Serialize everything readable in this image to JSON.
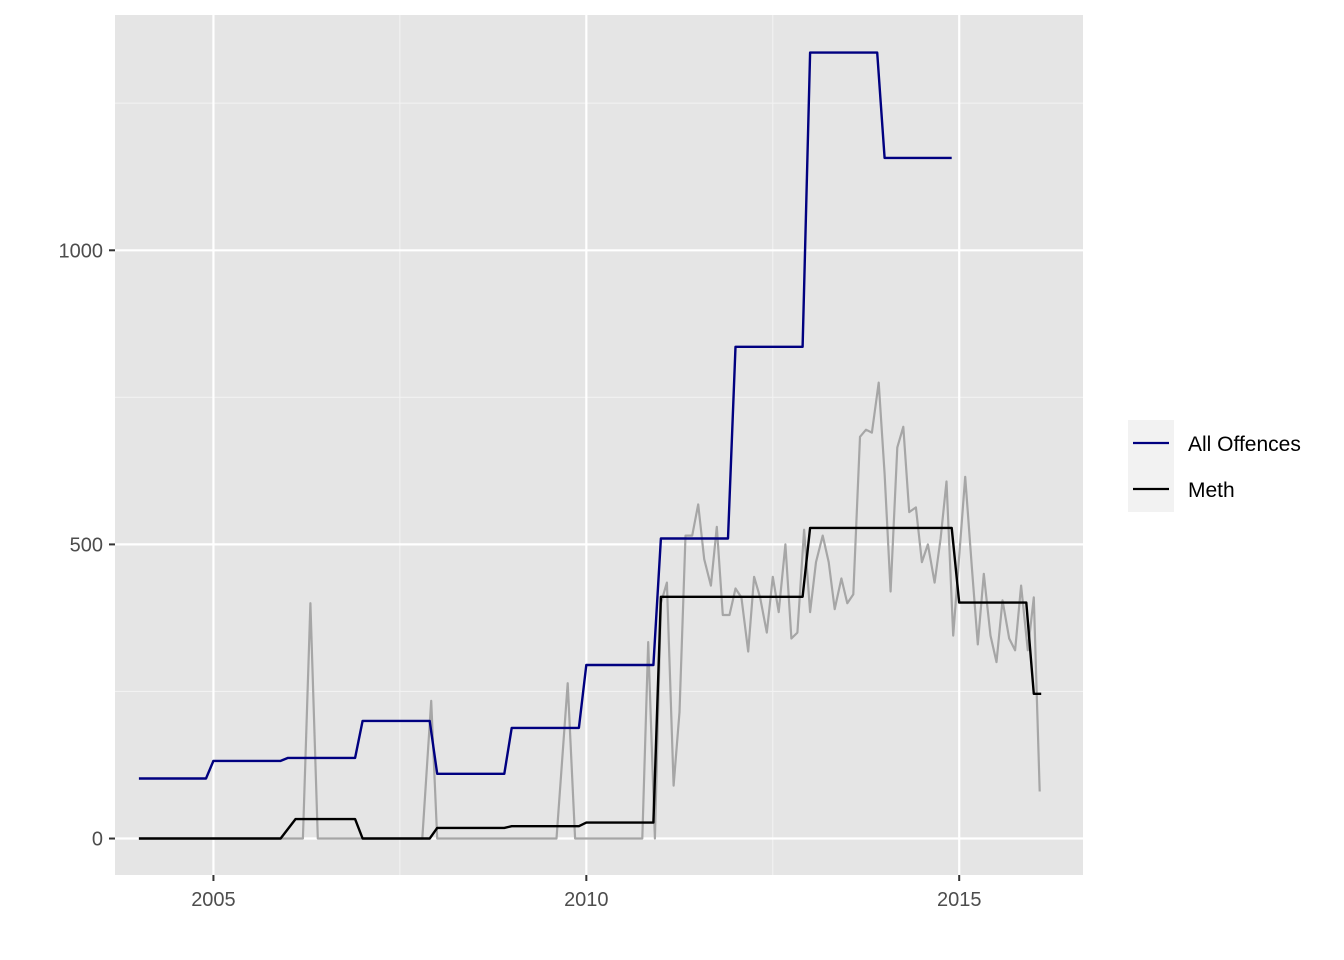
{
  "chart_data": {
    "type": "line",
    "title": "",
    "xlabel": "",
    "ylabel": "",
    "xlim": [
      2003.68,
      2016.66
    ],
    "ylim": [
      -62,
      1400
    ],
    "x_ticks": [
      2005,
      2010,
      2015
    ],
    "x_tick_labels": [
      "2005",
      "2010",
      "2015"
    ],
    "y_ticks": [
      0,
      500,
      1000
    ],
    "y_tick_labels": [
      "0",
      "500",
      "1000"
    ],
    "y_minor_ticks": [
      250,
      750,
      1250
    ],
    "grid": true,
    "panel_background": "#E5E5E5",
    "legend": {
      "position": "right",
      "entries": [
        {
          "label": "All Offences",
          "color": "#000080"
        },
        {
          "label": "Meth",
          "color": "#000000"
        }
      ]
    },
    "series": [
      {
        "name": "All Offences",
        "color": "#000080",
        "x": [
          2004.0,
          2004.9,
          2005.0,
          2005.9,
          2006.0,
          2006.9,
          2007.0,
          2007.9,
          2008.0,
          2008.9,
          2009.0,
          2009.9,
          2010.0,
          2010.9,
          2011.0,
          2011.9,
          2012.0,
          2012.9,
          2013.0,
          2013.9,
          2014.0,
          2014.9
        ],
        "y": [
          102,
          102,
          132,
          132,
          137,
          137,
          200,
          200,
          110,
          110,
          188,
          188,
          295,
          295,
          510,
          510,
          836,
          836,
          1336,
          1336,
          1157,
          1157
        ]
      },
      {
        "name": "Meth",
        "color": "#000000",
        "x": [
          2004.0,
          2005.9,
          2006.1,
          2006.9,
          2007.0,
          2007.9,
          2008.0,
          2008.9,
          2009.0,
          2009.9,
          2010.0,
          2010.9,
          2011.0,
          2012.9,
          2013.0,
          2014.0,
          2014.9,
          2015.0,
          2015.9,
          2016.0,
          2016.1
        ],
        "y": [
          0,
          0,
          33,
          33,
          0,
          0,
          18,
          18,
          21,
          21,
          27,
          27,
          411,
          411,
          528,
          528,
          528,
          401,
          401,
          246,
          246
        ]
      },
      {
        "name": "",
        "color": "#A6A6A6",
        "x": [
          2004.0,
          2006.2,
          2006.3,
          2006.4,
          2007.8,
          2007.92,
          2008.0,
          2008.1,
          2009.6,
          2009.75,
          2009.85,
          2010.75,
          2010.83,
          2010.92,
          2011.0,
          2011.08,
          2011.17,
          2011.25,
          2011.33,
          2011.42,
          2011.5,
          2011.58,
          2011.67,
          2011.75,
          2011.83,
          2011.92,
          2012.0,
          2012.08,
          2012.17,
          2012.25,
          2012.33,
          2012.42,
          2012.5,
          2012.58,
          2012.67,
          2012.75,
          2012.83,
          2012.92,
          2013.0,
          2013.08,
          2013.17,
          2013.25,
          2013.33,
          2013.42,
          2013.5,
          2013.58,
          2013.67,
          2013.75,
          2013.83,
          2013.92,
          2014.0,
          2014.08,
          2014.17,
          2014.25,
          2014.33,
          2014.42,
          2014.5,
          2014.58,
          2014.67,
          2014.75,
          2014.83,
          2014.92,
          2015.0,
          2015.08,
          2015.17,
          2015.25,
          2015.33,
          2015.42,
          2015.5,
          2015.58,
          2015.67,
          2015.75,
          2015.83,
          2015.92,
          2016.0,
          2016.08
        ],
        "y": [
          0,
          0,
          400,
          0,
          0,
          234,
          0,
          0,
          0,
          264,
          0,
          0,
          334,
          0,
          400,
          435,
          90,
          215,
          515,
          515,
          568,
          475,
          430,
          530,
          380,
          380,
          425,
          410,
          318,
          445,
          410,
          350,
          445,
          385,
          500,
          340,
          350,
          525,
          385,
          470,
          515,
          470,
          390,
          442,
          400,
          415,
          683,
          695,
          690,
          775,
          620,
          420,
          665,
          700,
          555,
          563,
          470,
          500,
          435,
          510,
          607,
          345,
          480,
          615,
          460,
          330,
          450,
          345,
          300,
          405,
          340,
          320,
          430,
          320,
          410,
          80
        ]
      }
    ]
  }
}
